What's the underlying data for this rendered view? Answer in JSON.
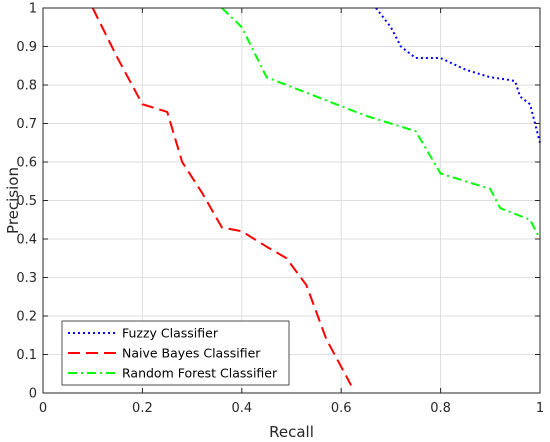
{
  "chart_data": {
    "type": "line",
    "title": "",
    "xlabel": "Recall",
    "ylabel": "Precision",
    "xlim": [
      0,
      1
    ],
    "ylim": [
      0,
      1
    ],
    "xticks": [
      0,
      0.2,
      0.4,
      0.6,
      0.8,
      1
    ],
    "xtick_labels": [
      "0",
      "0.2",
      "0.4",
      "0.6",
      "0.8",
      "1"
    ],
    "yticks": [
      0,
      0.1,
      0.2,
      0.3,
      0.4,
      0.5,
      0.6,
      0.7,
      0.8,
      0.9,
      1
    ],
    "ytick_labels": [
      "0",
      "0.1",
      "0.2",
      "0.3",
      "0.4",
      "0.5",
      "0.6",
      "0.7",
      "0.8",
      "0.9",
      "1"
    ],
    "grid": true,
    "legend_position": "bottom-left",
    "series": [
      {
        "name": "Fuzzy Classifier",
        "color": "#0000ff",
        "dash": "dotted",
        "x": [
          0.67,
          0.7,
          0.72,
          0.75,
          0.8,
          0.85,
          0.9,
          0.93,
          0.95,
          0.96,
          0.98,
          0.99,
          1.0
        ],
        "y": [
          1.0,
          0.95,
          0.9,
          0.87,
          0.87,
          0.84,
          0.82,
          0.815,
          0.81,
          0.77,
          0.75,
          0.7,
          0.65
        ]
      },
      {
        "name": "Naive Bayes Classifier",
        "color": "#ff0000",
        "dash": "dashed",
        "x": [
          0.1,
          0.15,
          0.2,
          0.25,
          0.28,
          0.32,
          0.36,
          0.4,
          0.45,
          0.49,
          0.53,
          0.57,
          0.62
        ],
        "y": [
          1.0,
          0.87,
          0.75,
          0.73,
          0.6,
          0.52,
          0.43,
          0.42,
          0.38,
          0.35,
          0.28,
          0.14,
          0.02
        ]
      },
      {
        "name": "Random Forest Classifier",
        "color": "#00ff00",
        "dash": "dashdot",
        "x": [
          0.36,
          0.4,
          0.45,
          0.55,
          0.65,
          0.75,
          0.8,
          0.9,
          0.92,
          0.98,
          1.0
        ],
        "y": [
          1.0,
          0.95,
          0.82,
          0.77,
          0.72,
          0.68,
          0.57,
          0.53,
          0.48,
          0.45,
          0.4
        ]
      }
    ]
  }
}
